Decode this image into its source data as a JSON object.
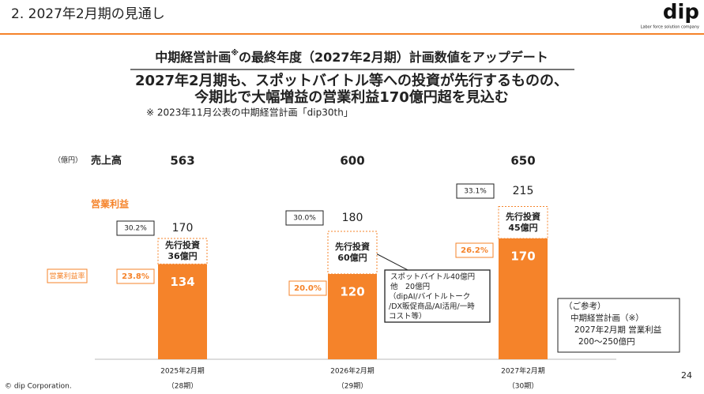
{
  "header": {
    "title": "2. 2027年2月期の見通し",
    "logo": "dip",
    "logo_tagline": "Labor force solution company"
  },
  "headline": {
    "line1_before": "中期経営計画",
    "line1_mark": "※",
    "line1_after": "の最終年度（2027年2月期）計画数値をアップデート",
    "line2": "2027年2月期も、スポットバイトル等への投資が先行するものの、",
    "line3": "今期比で大幅増益の営業利益170億円超を見込む",
    "note": "※ 2023年11月公表の中期経営計画「dip30th」"
  },
  "chart_data": {
    "type": "stacked_bar",
    "unit": "（億円）",
    "categories": [
      "2025年2月期",
      "2026年2月期",
      "2027年2月期"
    ],
    "periods": [
      "（28期）",
      "（29期）",
      "（30期）"
    ],
    "revenue_label": "売上高",
    "revenue": [
      563,
      600,
      650
    ],
    "series": [
      {
        "name": "営業利益",
        "color": "#f5832a",
        "values": [
          134,
          120,
          170
        ]
      },
      {
        "name": "先行投資",
        "color": "#f5832a",
        "values": [
          36,
          60,
          45
        ],
        "value_labels": [
          "36億円",
          "60億円",
          "45億円"
        ]
      }
    ],
    "totals": [
      170,
      180,
      215
    ],
    "margin_label": "営業利益率",
    "margins": [
      23.8,
      20.0,
      26.2
    ],
    "margins_value_labels": [
      "23.8%",
      "20.0%",
      "26.2%"
    ],
    "margins_incl_investment": [
      30.2,
      30.0,
      33.1
    ],
    "margins_incl_investment_value_labels": [
      "30.2%",
      "30.0%",
      "33.1%"
    ]
  },
  "callout": {
    "lines": [
      "スポットバイトル40億円",
      "他　20億円",
      "（dipAI/バイトルトーク",
      "/DX販促商品/AI活用/一時",
      "コスト等）"
    ]
  },
  "reference": {
    "lines": [
      "（ご参考）",
      "中期経営計画（※）",
      "2027年2月期 営業利益",
      "200～250億円"
    ]
  },
  "footer": {
    "copyright": "© dip Corporation.",
    "page": "24"
  }
}
